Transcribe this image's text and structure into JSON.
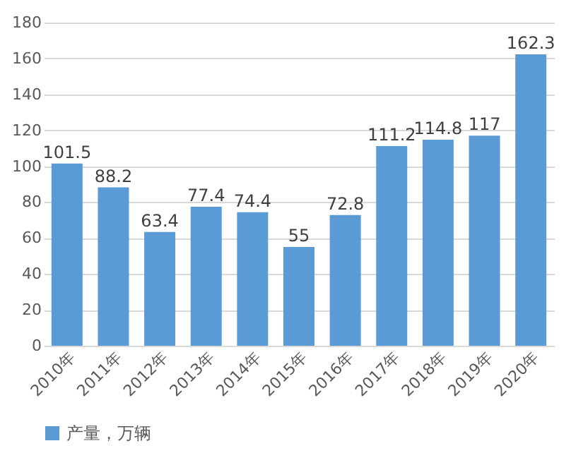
{
  "chart_data": {
    "type": "bar",
    "categories": [
      "2010年",
      "2011年",
      "2012年",
      "2013年",
      "2014年",
      "2015年",
      "2016年",
      "2017年",
      "2018年",
      "2019年",
      "2020年"
    ],
    "series": [
      {
        "name": "产量，万辆",
        "color": "#5b9bd5",
        "values": [
          101.5,
          88.2,
          63.4,
          77.4,
          74.4,
          55,
          72.8,
          111.2,
          114.8,
          117,
          162.3
        ]
      }
    ],
    "ylim": [
      0,
      180
    ],
    "yticks": [
      0,
      20,
      40,
      60,
      80,
      100,
      120,
      140,
      160,
      180
    ],
    "grid": "y",
    "legend": "bottom",
    "data_labels": true
  }
}
